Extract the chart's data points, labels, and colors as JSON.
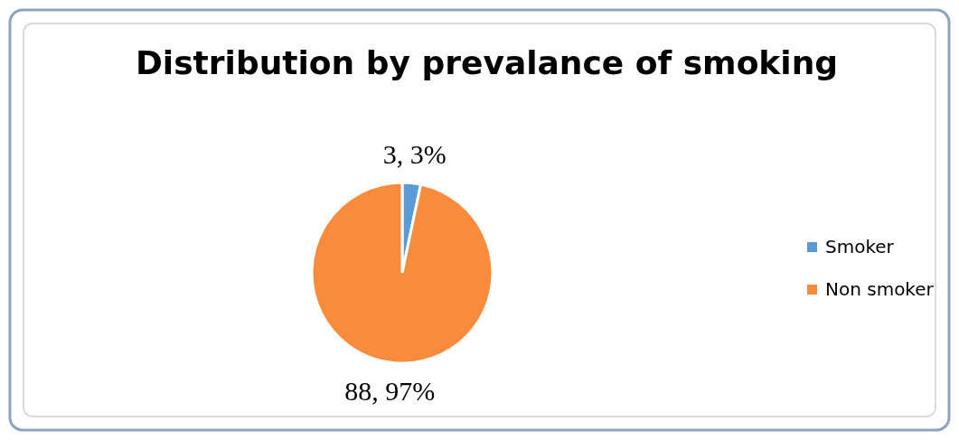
{
  "chart_data": {
    "type": "pie",
    "title": "Distribution by prevalance of smoking",
    "categories": [
      "Smoker",
      "Non smoker"
    ],
    "values": [
      3,
      88
    ],
    "colors": [
      "#5b9bd5",
      "#f88c3c"
    ],
    "value_labels": [
      "3, 3%",
      "88, 97%"
    ],
    "legend": "right"
  }
}
